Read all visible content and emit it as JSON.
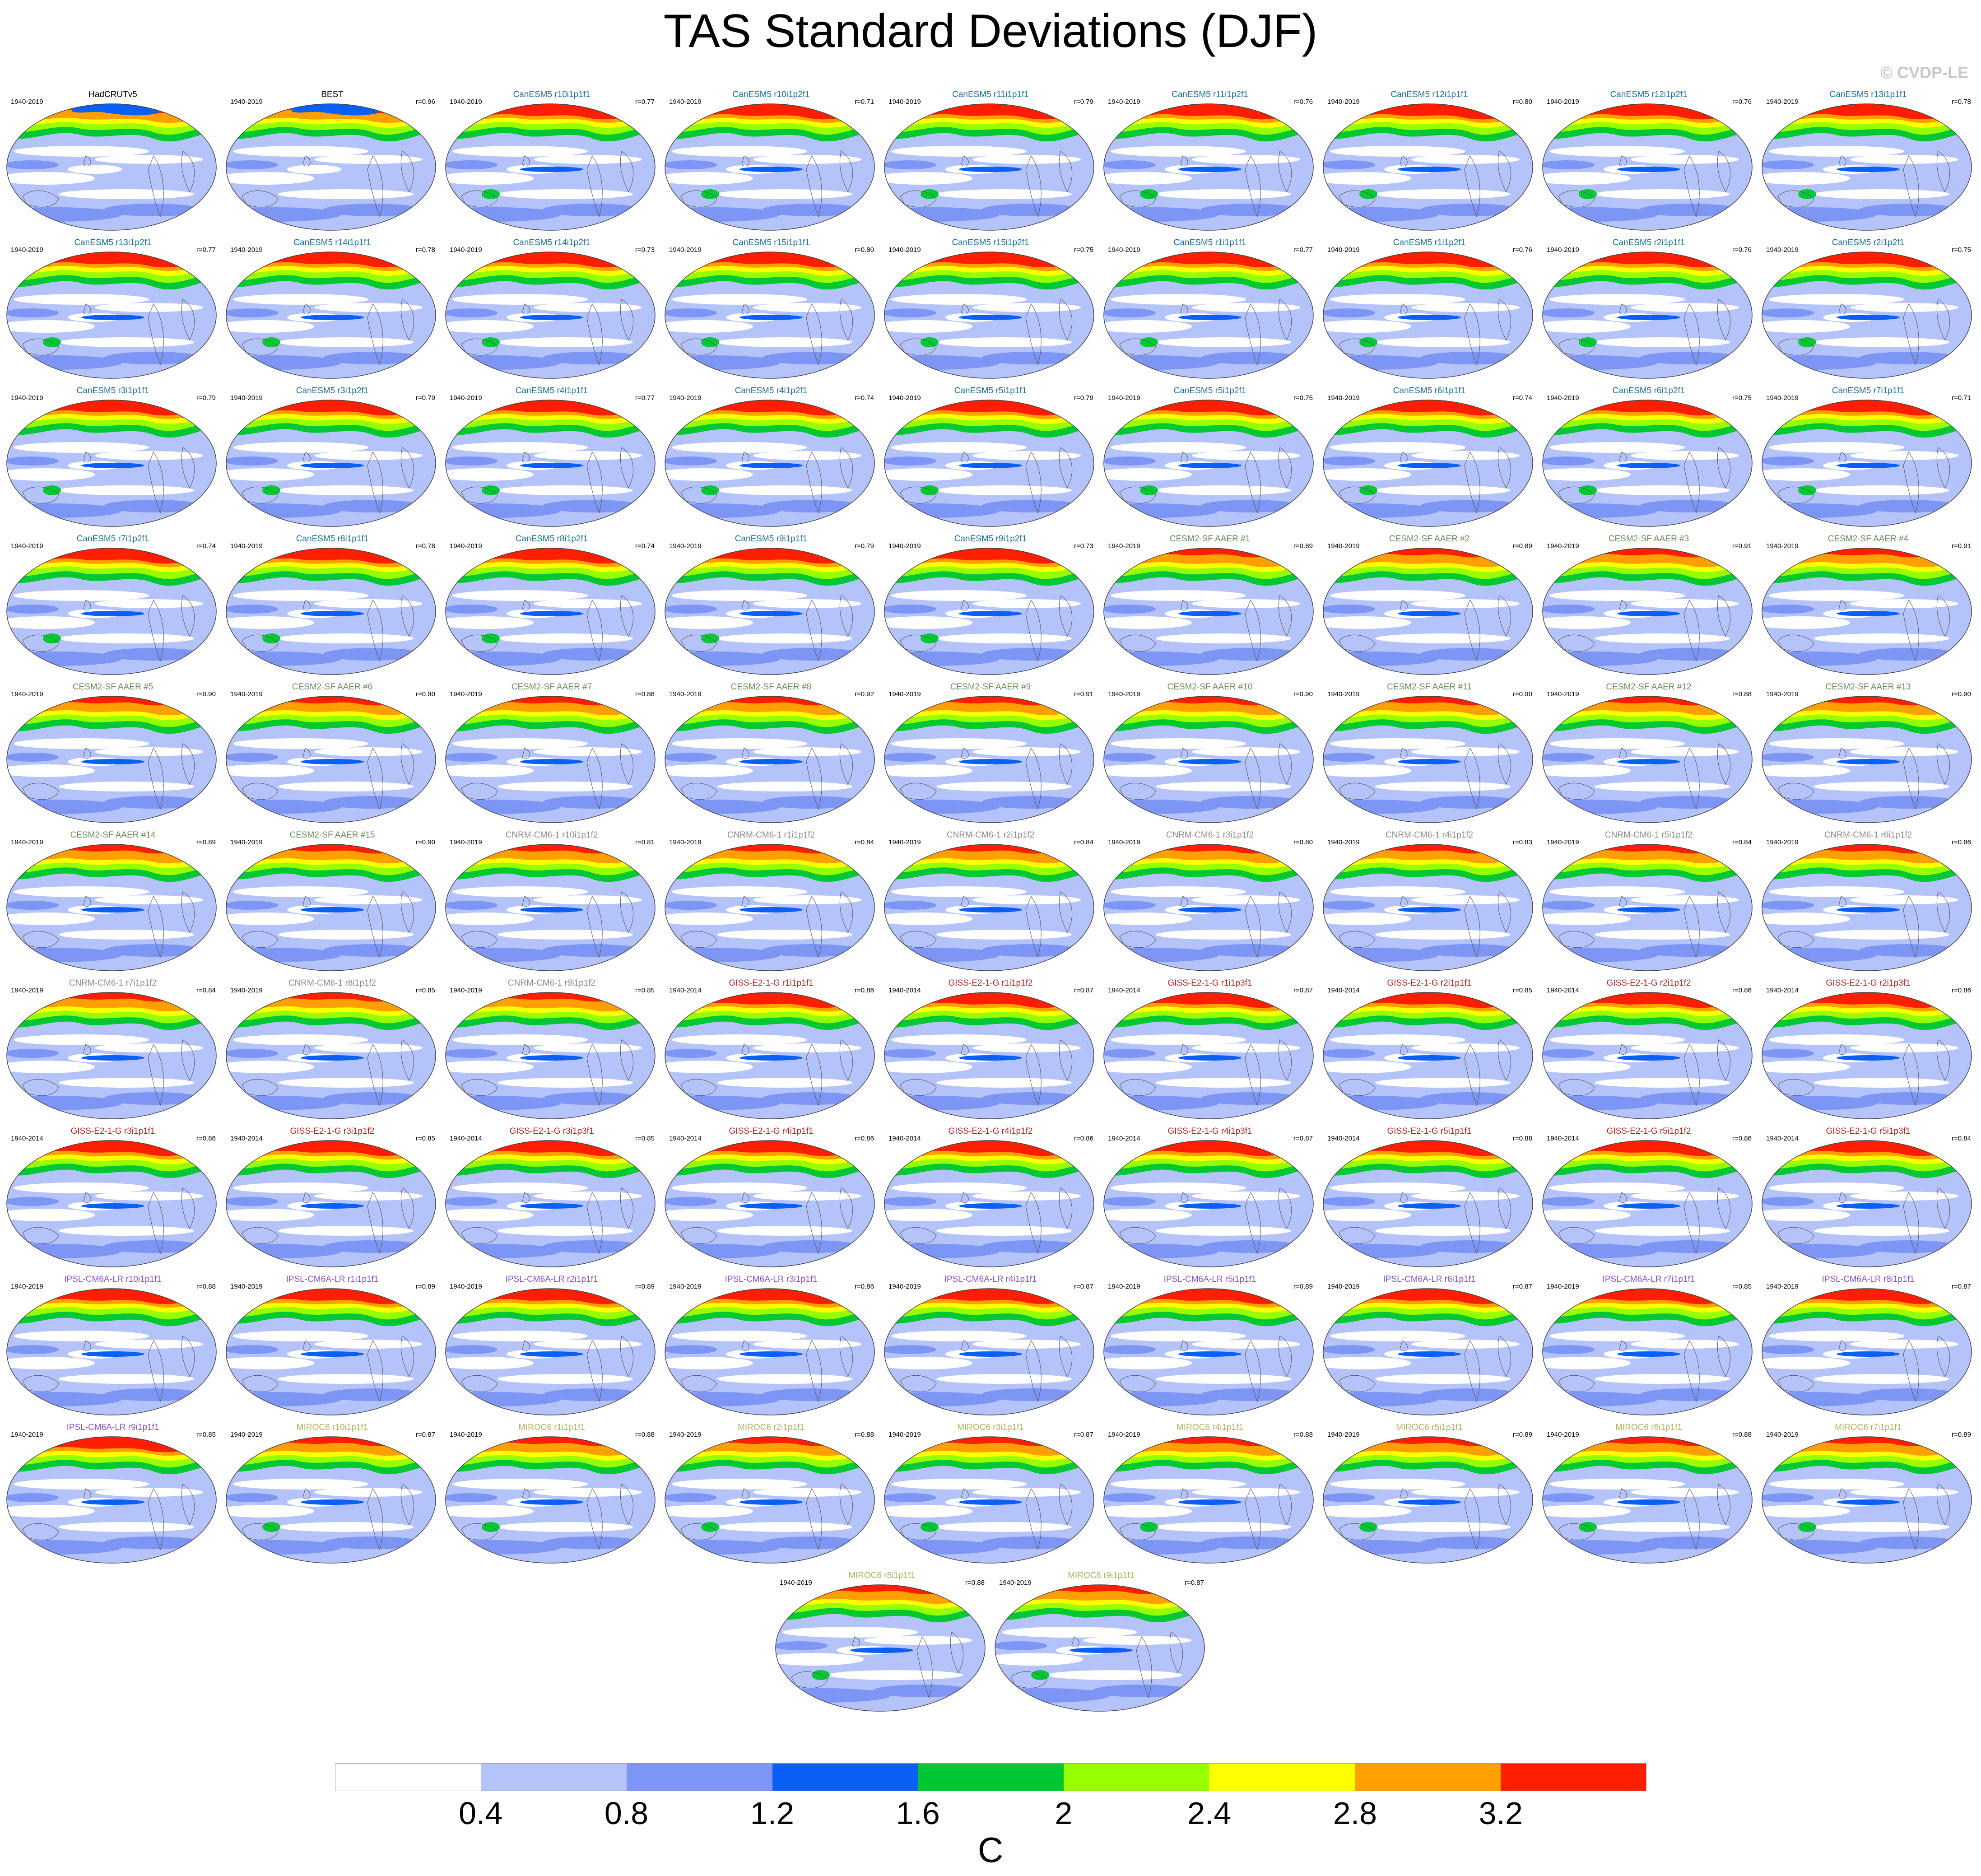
{
  "title": "TAS Standard Deviations (DJF)",
  "credit": "© CVDP-LE",
  "colors": {
    "name_obs": "#000000",
    "name_canesm5": "#1c6e9a",
    "name_cesm2": "#6a8c5a",
    "name_cnrm": "#8a8a8a",
    "name_giss": "#b22222",
    "name_ipsl": "#8a50c8",
    "name_miroc6": "#b0b060",
    "land_outline": "#555555"
  },
  "colorbar": {
    "colors": [
      "#ffffff",
      "#b4c3fa",
      "#7d96f5",
      "#0a5ff5",
      "#00c832",
      "#96ff00",
      "#ffff00",
      "#ffa000",
      "#ff1e00"
    ],
    "ticks": [
      "0.4",
      "0.8",
      "1.2",
      "1.6",
      "2",
      "2.4",
      "2.8",
      "3.2"
    ],
    "unit": "C"
  },
  "panels": [
    {
      "name": "HadCRUTv5",
      "years": "1940-2019",
      "corr": "",
      "group": "obs"
    },
    {
      "name": "BEST",
      "years": "1940-2019",
      "corr": "r=0.96",
      "group": "obs"
    },
    {
      "name": "CanESM5 r10i1p1f1",
      "years": "1940-2019",
      "corr": "r=0.77",
      "group": "canesm5"
    },
    {
      "name": "CanESM5 r10i1p2f1",
      "years": "1940-2019",
      "corr": "r=0.71",
      "group": "canesm5"
    },
    {
      "name": "CanESM5 r11i1p1f1",
      "years": "1940-2019",
      "corr": "r=0.79",
      "group": "canesm5"
    },
    {
      "name": "CanESM5 r11i1p2f1",
      "years": "1940-2019",
      "corr": "r=0.76",
      "group": "canesm5"
    },
    {
      "name": "CanESM5 r12i1p1f1",
      "years": "1940-2019",
      "corr": "r=0.80",
      "group": "canesm5"
    },
    {
      "name": "CanESM5 r12i1p2f1",
      "years": "1940-2019",
      "corr": "r=0.76",
      "group": "canesm5"
    },
    {
      "name": "CanESM5 r13i1p1f1",
      "years": "1940-2019",
      "corr": "r=0.78",
      "group": "canesm5"
    },
    {
      "name": "CanESM5 r13i1p2f1",
      "years": "1940-2019",
      "corr": "r=0.77",
      "group": "canesm5"
    },
    {
      "name": "CanESM5 r14i1p1f1",
      "years": "1940-2019",
      "corr": "r=0.78",
      "group": "canesm5"
    },
    {
      "name": "CanESM5 r14i1p2f1",
      "years": "1940-2019",
      "corr": "r=0.73",
      "group": "canesm5"
    },
    {
      "name": "CanESM5 r15i1p1f1",
      "years": "1940-2019",
      "corr": "r=0.80",
      "group": "canesm5"
    },
    {
      "name": "CanESM5 r15i1p2f1",
      "years": "1940-2019",
      "corr": "r=0.75",
      "group": "canesm5"
    },
    {
      "name": "CanESM5 r1i1p1f1",
      "years": "1940-2019",
      "corr": "r=0.77",
      "group": "canesm5"
    },
    {
      "name": "CanESM5 r1i1p2f1",
      "years": "1940-2019",
      "corr": "r=0.76",
      "group": "canesm5"
    },
    {
      "name": "CanESM5 r2i1p1f1",
      "years": "1940-2019",
      "corr": "r=0.76",
      "group": "canesm5"
    },
    {
      "name": "CanESM5 r2i1p2f1",
      "years": "1940-2019",
      "corr": "r=0.75",
      "group": "canesm5"
    },
    {
      "name": "CanESM5 r3i1p1f1",
      "years": "1940-2019",
      "corr": "r=0.79",
      "group": "canesm5"
    },
    {
      "name": "CanESM5 r3i1p2f1",
      "years": "1940-2019",
      "corr": "r=0.79",
      "group": "canesm5"
    },
    {
      "name": "CanESM5 r4i1p1f1",
      "years": "1940-2019",
      "corr": "r=0.77",
      "group": "canesm5"
    },
    {
      "name": "CanESM5 r4i1p2f1",
      "years": "1940-2019",
      "corr": "r=0.74",
      "group": "canesm5"
    },
    {
      "name": "CanESM5 r5i1p1f1",
      "years": "1940-2019",
      "corr": "r=0.79",
      "group": "canesm5"
    },
    {
      "name": "CanESM5 r5i1p2f1",
      "years": "1940-2019",
      "corr": "r=0.75",
      "group": "canesm5"
    },
    {
      "name": "CanESM5 r6i1p1f1",
      "years": "1940-2019",
      "corr": "r=0.74",
      "group": "canesm5"
    },
    {
      "name": "CanESM5 r6i1p2f1",
      "years": "1940-2019",
      "corr": "r=0.75",
      "group": "canesm5"
    },
    {
      "name": "CanESM5 r7i1p1f1",
      "years": "1940-2019",
      "corr": "r=0.71",
      "group": "canesm5"
    },
    {
      "name": "CanESM5 r7i1p2f1",
      "years": "1940-2019",
      "corr": "r=0.74",
      "group": "canesm5"
    },
    {
      "name": "CanESM5 r8i1p1f1",
      "years": "1940-2019",
      "corr": "r=0.78",
      "group": "canesm5"
    },
    {
      "name": "CanESM5 r8i1p2f1",
      "years": "1940-2019",
      "corr": "r=0.74",
      "group": "canesm5"
    },
    {
      "name": "CanESM5 r9i1p1f1",
      "years": "1940-2019",
      "corr": "r=0.79",
      "group": "canesm5"
    },
    {
      "name": "CanESM5 r9i1p2f1",
      "years": "1940-2019",
      "corr": "r=0.73",
      "group": "canesm5"
    },
    {
      "name": "CESM2-SF AAER #1",
      "years": "1940-2019",
      "corr": "r=0.89",
      "group": "cesm2"
    },
    {
      "name": "CESM2-SF AAER #2",
      "years": "1940-2019",
      "corr": "r=0.89",
      "group": "cesm2"
    },
    {
      "name": "CESM2-SF AAER #3",
      "years": "1940-2019",
      "corr": "r=0.91",
      "group": "cesm2"
    },
    {
      "name": "CESM2-SF AAER #4",
      "years": "1940-2019",
      "corr": "r=0.91",
      "group": "cesm2"
    },
    {
      "name": "CESM2-SF AAER #5",
      "years": "1940-2019",
      "corr": "r=0.90",
      "group": "cesm2"
    },
    {
      "name": "CESM2-SF AAER #6",
      "years": "1940-2019",
      "corr": "r=0.90",
      "group": "cesm2"
    },
    {
      "name": "CESM2-SF AAER #7",
      "years": "1940-2019",
      "corr": "r=0.88",
      "group": "cesm2"
    },
    {
      "name": "CESM2-SF AAER #8",
      "years": "1940-2019",
      "corr": "r=0.92",
      "group": "cesm2"
    },
    {
      "name": "CESM2-SF AAER #9",
      "years": "1940-2019",
      "corr": "r=0.91",
      "group": "cesm2"
    },
    {
      "name": "CESM2-SF AAER #10",
      "years": "1940-2019",
      "corr": "r=0.90",
      "group": "cesm2"
    },
    {
      "name": "CESM2-SF AAER #11",
      "years": "1940-2019",
      "corr": "r=0.90",
      "group": "cesm2"
    },
    {
      "name": "CESM2-SF AAER #12",
      "years": "1940-2019",
      "corr": "r=0.88",
      "group": "cesm2"
    },
    {
      "name": "CESM2-SF AAER #13",
      "years": "1940-2019",
      "corr": "r=0.90",
      "group": "cesm2"
    },
    {
      "name": "CESM2-SF AAER #14",
      "years": "1940-2019",
      "corr": "r=0.89",
      "group": "cesm2"
    },
    {
      "name": "CESM2-SF AAER #15",
      "years": "1940-2019",
      "corr": "r=0.90",
      "group": "cesm2"
    },
    {
      "name": "CNRM-CM6-1 r10i1p1f2",
      "years": "1940-2019",
      "corr": "r=0.81",
      "group": "cnrm"
    },
    {
      "name": "CNRM-CM6-1 r1i1p1f2",
      "years": "1940-2019",
      "corr": "r=0.84",
      "group": "cnrm"
    },
    {
      "name": "CNRM-CM6-1 r2i1p1f2",
      "years": "1940-2019",
      "corr": "r=0.84",
      "group": "cnrm"
    },
    {
      "name": "CNRM-CM6-1 r3i1p1f2",
      "years": "1940-2019",
      "corr": "r=0.80",
      "group": "cnrm"
    },
    {
      "name": "CNRM-CM6-1 r4i1p1f2",
      "years": "1940-2019",
      "corr": "r=0.83",
      "group": "cnrm"
    },
    {
      "name": "CNRM-CM6-1 r5i1p1f2",
      "years": "1940-2019",
      "corr": "r=0.84",
      "group": "cnrm"
    },
    {
      "name": "CNRM-CM6-1 r6i1p1f2",
      "years": "1940-2019",
      "corr": "r=0.86",
      "group": "cnrm"
    },
    {
      "name": "CNRM-CM6-1 r7i1p1f2",
      "years": "1940-2019",
      "corr": "r=0.84",
      "group": "cnrm"
    },
    {
      "name": "CNRM-CM6-1 r8i1p1f2",
      "years": "1940-2019",
      "corr": "r=0.85",
      "group": "cnrm"
    },
    {
      "name": "CNRM-CM6-1 r9i1p1f2",
      "years": "1940-2019",
      "corr": "r=0.85",
      "group": "cnrm"
    },
    {
      "name": "GISS-E2-1-G r1i1p1f1",
      "years": "1940-2014",
      "corr": "r=0.86",
      "group": "giss"
    },
    {
      "name": "GISS-E2-1-G r1i1p1f2",
      "years": "1940-2014",
      "corr": "r=0.87",
      "group": "giss"
    },
    {
      "name": "GISS-E2-1-G r1i1p3f1",
      "years": "1940-2014",
      "corr": "r=0.87",
      "group": "giss"
    },
    {
      "name": "GISS-E2-1-G r2i1p1f1",
      "years": "1940-2014",
      "corr": "r=0.85",
      "group": "giss"
    },
    {
      "name": "GISS-E2-1-G r2i1p1f2",
      "years": "1940-2014",
      "corr": "r=0.86",
      "group": "giss"
    },
    {
      "name": "GISS-E2-1-G r2i1p3f1",
      "years": "1940-2014",
      "corr": "r=0.86",
      "group": "giss"
    },
    {
      "name": "GISS-E2-1-G r3i1p1f1",
      "years": "1940-2014",
      "corr": "r=0.86",
      "group": "giss"
    },
    {
      "name": "GISS-E2-1-G r3i1p1f2",
      "years": "1940-2014",
      "corr": "r=0.85",
      "group": "giss"
    },
    {
      "name": "GISS-E2-1-G r3i1p3f1",
      "years": "1940-2014",
      "corr": "r=0.85",
      "group": "giss"
    },
    {
      "name": "GISS-E2-1-G r4i1p1f1",
      "years": "1940-2014",
      "corr": "r=0.86",
      "group": "giss"
    },
    {
      "name": "GISS-E2-1-G r4i1p1f2",
      "years": "1940-2014",
      "corr": "r=0.86",
      "group": "giss"
    },
    {
      "name": "GISS-E2-1-G r4i1p3f1",
      "years": "1940-2014",
      "corr": "r=0.87",
      "group": "giss"
    },
    {
      "name": "GISS-E2-1-G r5i1p1f1",
      "years": "1940-2014",
      "corr": "r=0.88",
      "group": "giss"
    },
    {
      "name": "GISS-E2-1-G r5i1p1f2",
      "years": "1940-2014",
      "corr": "r=0.86",
      "group": "giss"
    },
    {
      "name": "GISS-E2-1-G r5i1p3f1",
      "years": "1940-2014",
      "corr": "r=0.84",
      "group": "giss"
    },
    {
      "name": "IPSL-CM6A-LR r10i1p1f1",
      "years": "1940-2019",
      "corr": "r=0.88",
      "group": "ipsl"
    },
    {
      "name": "IPSL-CM6A-LR r1i1p1f1",
      "years": "1940-2019",
      "corr": "r=0.89",
      "group": "ipsl"
    },
    {
      "name": "IPSL-CM6A-LR r2i1p1f1",
      "years": "1940-2019",
      "corr": "r=0.89",
      "group": "ipsl"
    },
    {
      "name": "IPSL-CM6A-LR r3i1p1f1",
      "years": "1940-2019",
      "corr": "r=0.86",
      "group": "ipsl"
    },
    {
      "name": "IPSL-CM6A-LR r4i1p1f1",
      "years": "1940-2019",
      "corr": "r=0.87",
      "group": "ipsl"
    },
    {
      "name": "IPSL-CM6A-LR r5i1p1f1",
      "years": "1940-2019",
      "corr": "r=0.89",
      "group": "ipsl"
    },
    {
      "name": "IPSL-CM6A-LR r6i1p1f1",
      "years": "1940-2019",
      "corr": "r=0.87",
      "group": "ipsl"
    },
    {
      "name": "IPSL-CM6A-LR r7i1p1f1",
      "years": "1940-2019",
      "corr": "r=0.85",
      "group": "ipsl"
    },
    {
      "name": "IPSL-CM6A-LR r8i1p1f1",
      "years": "1940-2019",
      "corr": "r=0.87",
      "group": "ipsl"
    },
    {
      "name": "IPSL-CM6A-LR r9i1p1f1",
      "years": "1940-2019",
      "corr": "r=0.85",
      "group": "ipsl"
    },
    {
      "name": "MIROC6 r10i1p1f1",
      "years": "1940-2019",
      "corr": "r=0.87",
      "group": "miroc6"
    },
    {
      "name": "MIROC6 r1i1p1f1",
      "years": "1940-2019",
      "corr": "r=0.88",
      "group": "miroc6"
    },
    {
      "name": "MIROC6 r2i1p1f1",
      "years": "1940-2019",
      "corr": "r=0.88",
      "group": "miroc6"
    },
    {
      "name": "MIROC6 r3i1p1f1",
      "years": "1940-2019",
      "corr": "r=0.87",
      "group": "miroc6"
    },
    {
      "name": "MIROC6 r4i1p1f1",
      "years": "1940-2019",
      "corr": "r=0.88",
      "group": "miroc6"
    },
    {
      "name": "MIROC6 r5i1p1f1",
      "years": "1940-2019",
      "corr": "r=0.89",
      "group": "miroc6"
    },
    {
      "name": "MIROC6 r6i1p1f1",
      "years": "1940-2019",
      "corr": "r=0.88",
      "group": "miroc6"
    },
    {
      "name": "MIROC6 r7i1p1f1",
      "years": "1940-2019",
      "corr": "r=0.89",
      "group": "miroc6"
    },
    {
      "name": "MIROC6 r8i1p1f1",
      "years": "1940-2019",
      "corr": "r=0.88",
      "group": "miroc6"
    },
    {
      "name": "MIROC6 r9i1p1f1",
      "years": "1940-2019",
      "corr": "r=0.87",
      "group": "miroc6"
    }
  ]
}
